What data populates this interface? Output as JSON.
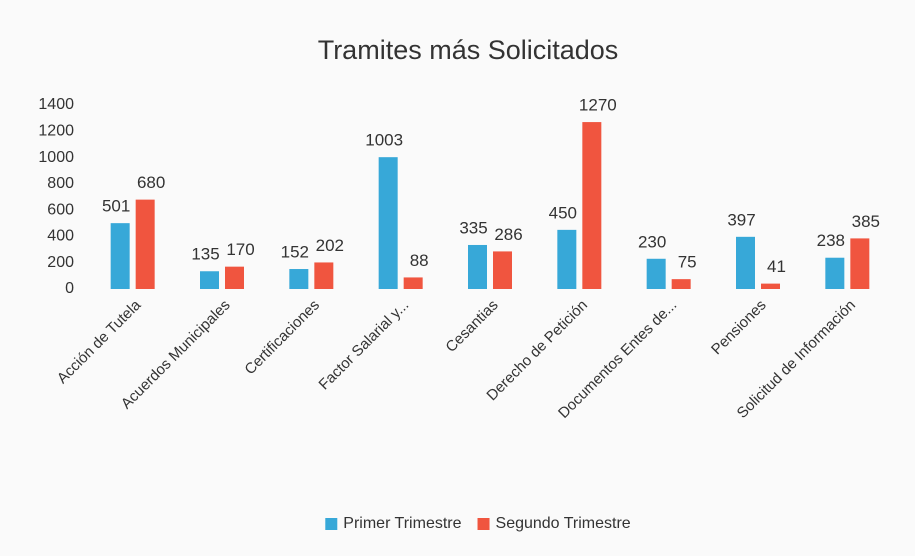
{
  "chart_data": {
    "type": "bar",
    "title": "Tramites más Solicitados",
    "categories": [
      "Acción de Tutela",
      "Acuerdos Municipales",
      "Certificaciones",
      "Factor Salarial y...",
      "Cesantias",
      "Derecho de Petición",
      "Documentos Entes de...",
      "Pensiones",
      "Solicitud de Información"
    ],
    "series": [
      {
        "name": "Primer Trimestre",
        "color": "#37a8d8",
        "values": [
          501,
          135,
          152,
          1003,
          335,
          450,
          230,
          397,
          238
        ]
      },
      {
        "name": "Segundo Trimestre",
        "color": "#f0553f",
        "values": [
          680,
          170,
          202,
          88,
          286,
          1270,
          75,
          41,
          385
        ]
      }
    ],
    "ylim": [
      0,
      1400
    ],
    "yticks": [
      0,
      200,
      400,
      600,
      800,
      1000,
      1200,
      1400
    ],
    "grid": false,
    "legend": "bottom"
  }
}
